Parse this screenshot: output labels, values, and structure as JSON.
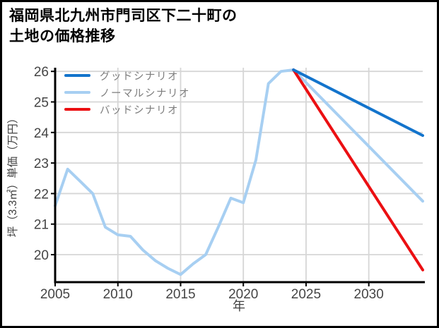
{
  "page": {
    "title_line1": "福岡県北九州市門司区下二十町の",
    "title_line2": "土地の価格推移"
  },
  "chart_data": {
    "type": "line",
    "title": "福岡県北九州市門司区下二十町の土地の価格推移",
    "xlabel": "年",
    "ylabel": "坪（3.3㎡）単価（万円）",
    "x_ticks": [
      2005,
      2010,
      2015,
      2020,
      2025,
      2030
    ],
    "y_ticks": [
      20,
      21,
      22,
      23,
      24,
      25,
      26
    ],
    "xlim": [
      2005,
      2034.3
    ],
    "ylim": [
      19.1,
      26.12
    ],
    "grid": true,
    "legend_position": "top-left",
    "colors": {
      "good": "#1374cc",
      "normal": "#a7cff2",
      "bad": "#eb0f12",
      "gridline": "#d6d6d6",
      "axis": "#000000",
      "legend_text": "#7d7d7d"
    },
    "series": [
      {
        "id": "good",
        "name": "グッドシナリオ",
        "color": "#1374cc",
        "x": [
          2024,
          2034.3
        ],
        "values": [
          26.05,
          23.9
        ]
      },
      {
        "id": "normal",
        "name": "ノーマルシナリオ",
        "color": "#a7cff2",
        "x": [
          2005,
          2006,
          2007,
          2008,
          2009,
          2010,
          2011,
          2012,
          2013,
          2014,
          2015,
          2016,
          2017,
          2018,
          2019,
          2020,
          2021,
          2022,
          2023,
          2024,
          2034.3
        ],
        "values": [
          21.6,
          22.8,
          22.4,
          22.0,
          20.9,
          20.65,
          20.6,
          20.15,
          19.8,
          19.55,
          19.35,
          19.7,
          20.0,
          20.9,
          21.85,
          21.7,
          23.1,
          25.6,
          26.0,
          26.05,
          21.75
        ]
      },
      {
        "id": "bad",
        "name": "バッドシナリオ",
        "color": "#eb0f12",
        "x": [
          2024,
          2034.3
        ],
        "values": [
          26.05,
          19.5
        ]
      }
    ]
  }
}
